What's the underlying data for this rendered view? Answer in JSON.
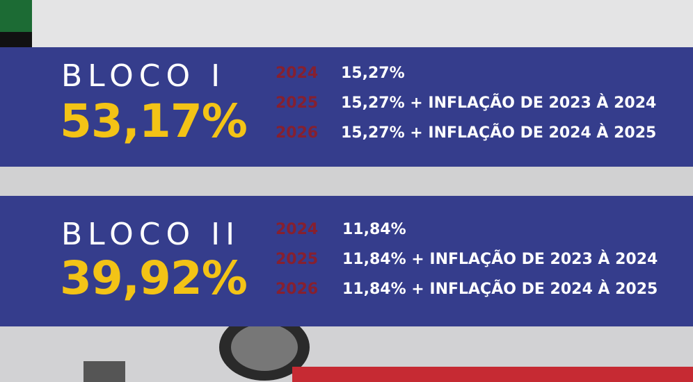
{
  "blocks": [
    {
      "title": "BLOCO I",
      "percentage": "53,17%",
      "rows": [
        {
          "year": "2024",
          "text": "15,27%"
        },
        {
          "year": "2025",
          "text": "15,27% + INFLAÇÃO DE 2023 À 2024"
        },
        {
          "year": "2026",
          "text": "15,27% + INFLAÇÃO DE 2024 À 2025"
        }
      ]
    },
    {
      "title": "BLOCO II",
      "percentage": "39,92%",
      "rows": [
        {
          "year": "2024",
          "text": "11,84%"
        },
        {
          "year": "2025",
          "text": "11,84% + INFLAÇÃO DE 2023 À 2024"
        },
        {
          "year": "2026",
          "text": "11,84% + INFLAÇÃO DE 2024 À 2025"
        }
      ]
    }
  ]
}
